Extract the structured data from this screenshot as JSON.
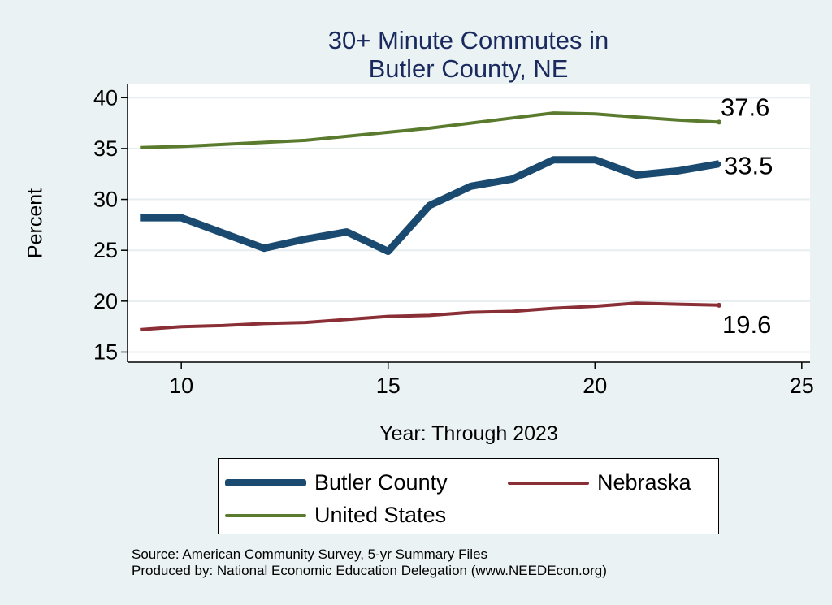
{
  "colors": {
    "background": "#eaf2f3",
    "title": "#1a2a5e",
    "butler": "#1a4a70",
    "nebraska": "#8b2f36",
    "us": "#5a7a2e"
  },
  "chart_data": {
    "type": "line",
    "title": [
      "30+ Minute Commutes in",
      "Butler County, NE"
    ],
    "xlabel": "Year: Through 2023",
    "ylabel": "Percent",
    "xlim": [
      8.7,
      25.2
    ],
    "ylim": [
      14,
      41.3
    ],
    "xticks": [
      10,
      15,
      20,
      25
    ],
    "yticks": [
      15,
      20,
      25,
      30,
      35,
      40
    ],
    "grid": true,
    "legend_position": "bottom",
    "x": [
      9,
      10,
      11,
      12,
      13,
      14,
      15,
      16,
      17,
      18,
      19,
      20,
      21,
      22,
      23
    ],
    "series": [
      {
        "name": "Butler County",
        "color": "#1a4a70",
        "width": 9,
        "values": [
          28.2,
          28.2,
          26.7,
          25.2,
          26.1,
          26.8,
          24.9,
          29.4,
          31.3,
          32.0,
          33.9,
          33.9,
          32.4,
          32.8,
          33.5
        ],
        "end_label": "33.5"
      },
      {
        "name": "Nebraska",
        "color": "#8b2f36",
        "width": 4,
        "values": [
          17.2,
          17.5,
          17.6,
          17.8,
          17.9,
          18.2,
          18.5,
          18.6,
          18.9,
          19.0,
          19.3,
          19.5,
          19.8,
          19.7,
          19.6
        ],
        "end_label": "19.6"
      },
      {
        "name": "United States",
        "color": "#5a7a2e",
        "width": 4,
        "values": [
          35.1,
          35.2,
          35.4,
          35.6,
          35.8,
          36.2,
          36.6,
          37.0,
          37.5,
          38.0,
          38.5,
          38.4,
          38.1,
          37.8,
          37.6
        ],
        "end_label": "37.6"
      }
    ],
    "legend": [
      "Butler County",
      "Nebraska",
      "United States"
    ]
  },
  "source": {
    "line1": "Source: American Community Survey, 5-yr Summary Files",
    "line2": "Produced by: National Economic Education Delegation (www.NEEDEcon.org)"
  }
}
